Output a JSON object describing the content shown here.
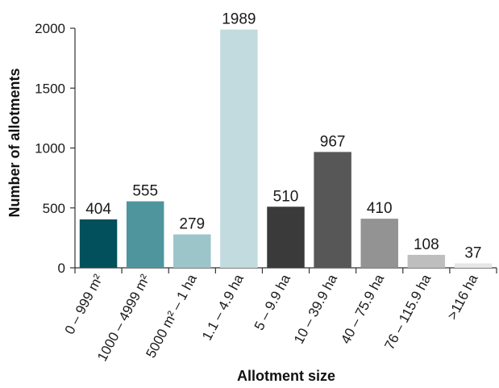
{
  "chart_data": {
    "type": "bar",
    "title": "",
    "xlabel": "Allotment size",
    "ylabel": "Number of allotments",
    "categories": [
      "0 – 999 m²",
      "1000 – 4999 m²",
      "5000 m² – 1 ha",
      "1.1 – 4.9 ha",
      "5 – 9.9 ha",
      "10 – 39.9 ha",
      "40 – 75.9 ha",
      "76 – 115.9 ha",
      ">116 ha"
    ],
    "values": [
      404,
      555,
      279,
      1989,
      510,
      967,
      410,
      108,
      37
    ],
    "data_labels": [
      "404",
      "555",
      "279",
      "1989",
      "510",
      "967",
      "410",
      "108",
      "37"
    ],
    "colors": [
      "#02505b",
      "#4e959e",
      "#9cc5ca",
      "#c2dbdf",
      "#3a3a3a",
      "#575757",
      "#939393",
      "#bebebe",
      "#e6e6e6"
    ],
    "ylim": [
      0,
      2000
    ],
    "yticks": [
      0,
      500,
      1000,
      1500,
      2000
    ],
    "ytick_labels": [
      "0",
      "500",
      "1000",
      "1500",
      "2000"
    ],
    "grid": false,
    "legend": "none"
  }
}
